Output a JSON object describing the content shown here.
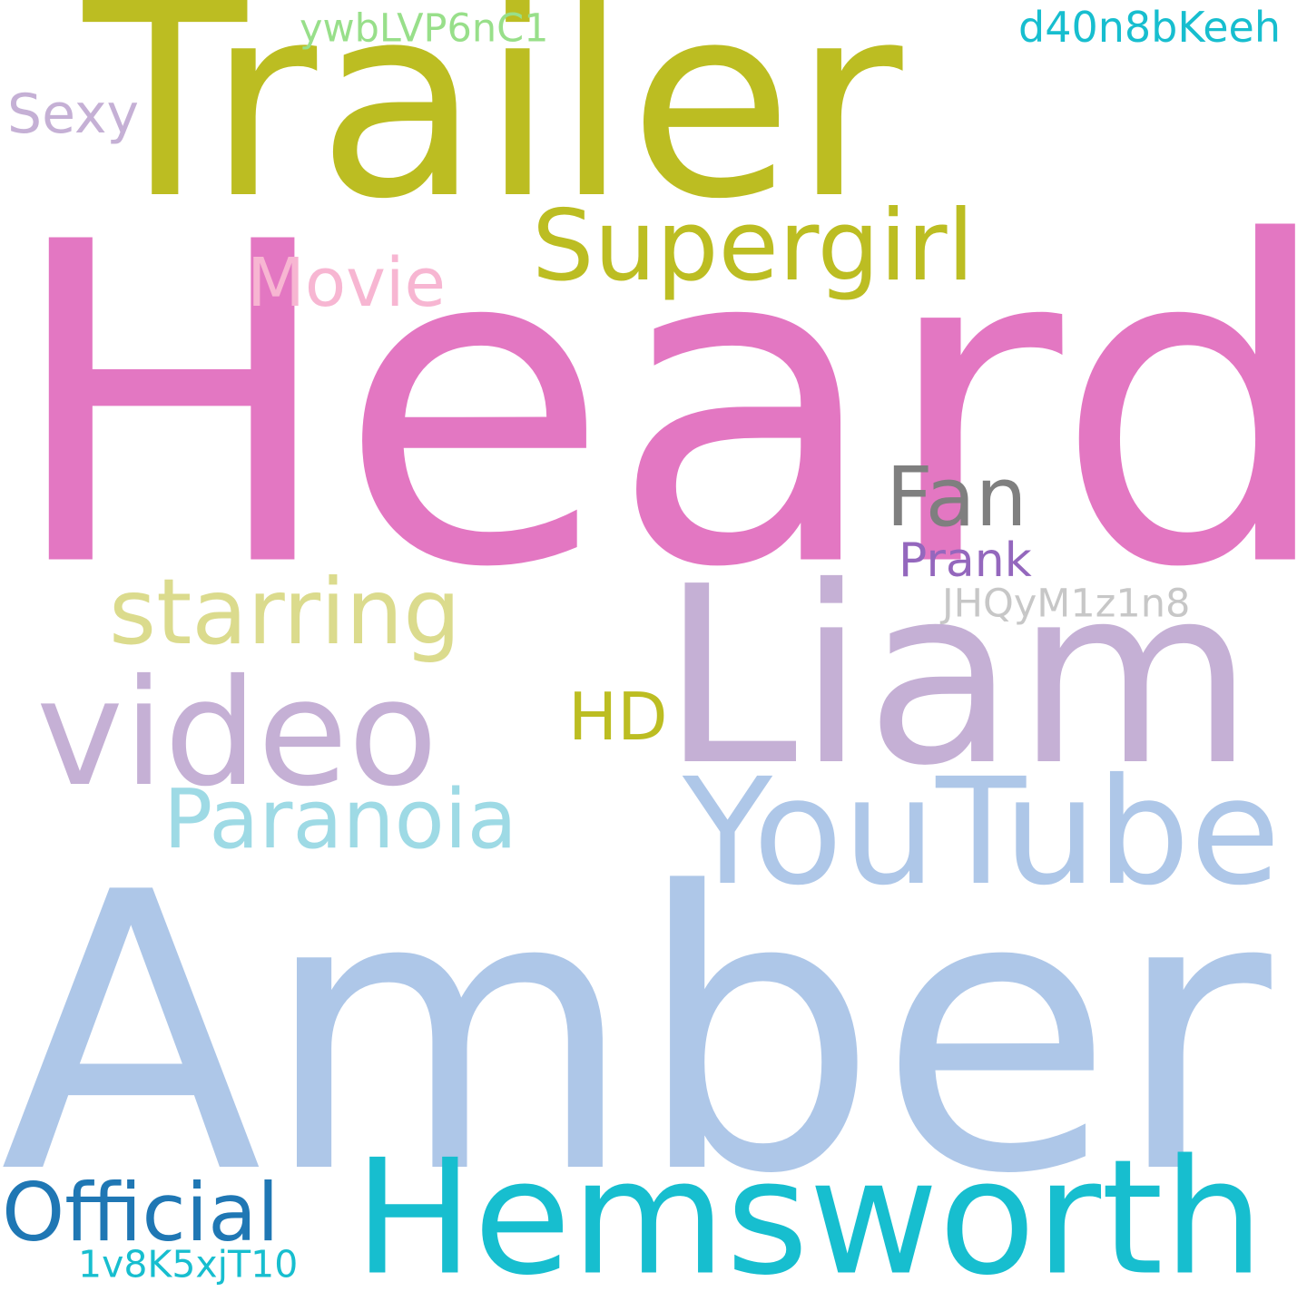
{
  "words": [
    {
      "text": "Amber",
      "color": "#aec7e8"
    },
    {
      "text": "Heard",
      "color": "#e377c2"
    },
    {
      "text": "Trailer",
      "color": "#bcbd22"
    },
    {
      "text": "Liam",
      "color": "#c5b0d5"
    },
    {
      "text": "Hemsworth",
      "color": "#17becf"
    },
    {
      "text": "YouTube",
      "color": "#aec7e8"
    },
    {
      "text": "video",
      "color": "#c5b0d5"
    },
    {
      "text": "Supergirl",
      "color": "#bcbd22"
    },
    {
      "text": "starring",
      "color": "#dbdb8d"
    },
    {
      "text": "Paranoia",
      "color": "#9edae5"
    },
    {
      "text": "Official",
      "color": "#1f77b4"
    },
    {
      "text": "Fan",
      "color": "#7f7f7f"
    },
    {
      "text": "Movie",
      "color": "#f7b6d2"
    },
    {
      "text": "HD",
      "color": "#bcbd22"
    },
    {
      "text": "Prank",
      "color": "#9467bd"
    },
    {
      "text": "Sexy",
      "color": "#c5b0d5"
    },
    {
      "text": "JHQyM1z1n8",
      "color": "#c7c7c7"
    },
    {
      "text": "ywbLVP6nC1",
      "color": "#98df8a"
    },
    {
      "text": "d40n8bKeeh",
      "color": "#17becf"
    },
    {
      "text": "1v8K5xjT10",
      "color": "#17becf"
    }
  ]
}
